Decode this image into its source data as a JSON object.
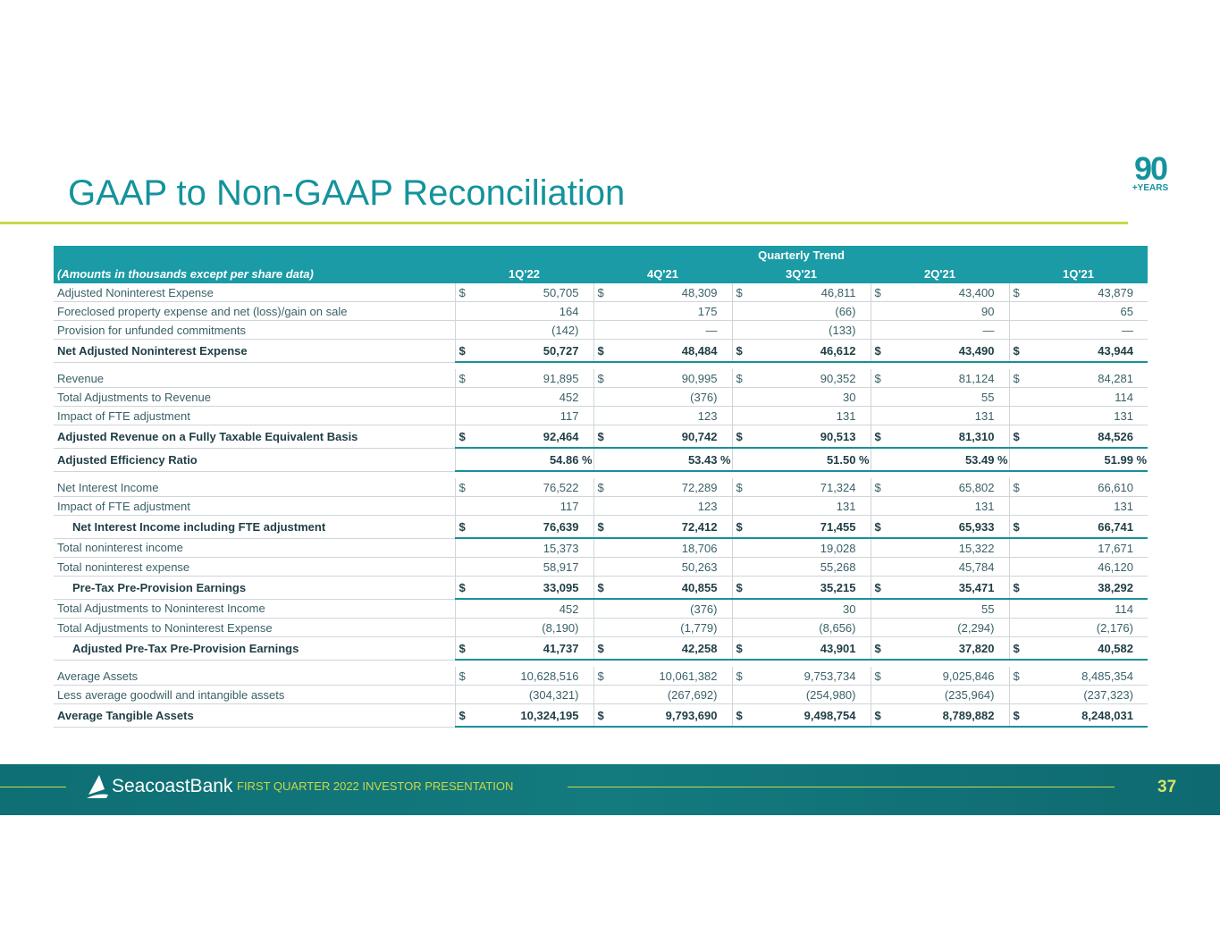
{
  "header": {
    "title": "GAAP to Non-GAAP Reconciliation",
    "logo": {
      "number": "90",
      "caption": "+YEARS"
    }
  },
  "table": {
    "group_header": "Quarterly Trend",
    "label_header": "(Amounts in thousands except per share data)",
    "columns": [
      "1Q'22",
      "4Q'21",
      "3Q'21",
      "2Q'21",
      "1Q'21"
    ],
    "currency_symbol": "$",
    "percent_symbol": "%",
    "sections": [
      {
        "rows": [
          {
            "label": "Adjusted Noninterest Expense",
            "dollar": true,
            "cells": [
              "50,705",
              "48,309",
              "46,811",
              "43,400",
              "43,879"
            ]
          },
          {
            "label": "Foreclosed property expense and net (loss)/gain on sale",
            "cells": [
              "164",
              "175",
              "(66)",
              "90",
              "65"
            ]
          },
          {
            "label": "Provision for unfunded commitments",
            "cells": [
              "(142)",
              "—",
              "(133)",
              "—",
              "—"
            ]
          },
          {
            "label": "Net Adjusted Noninterest Expense",
            "bold": true,
            "dollar": true,
            "cells": [
              "50,727",
              "48,484",
              "46,612",
              "43,490",
              "43,944"
            ]
          }
        ]
      },
      {
        "rows": [
          {
            "label": "Revenue",
            "dollar": true,
            "cells": [
              "91,895",
              "90,995",
              "90,352",
              "81,124",
              "84,281"
            ]
          },
          {
            "label": "Total Adjustments to Revenue",
            "cells": [
              "452",
              "(376)",
              "30",
              "55",
              "114"
            ]
          },
          {
            "label": "Impact of FTE adjustment",
            "cells": [
              "117",
              "123",
              "131",
              "131",
              "131"
            ]
          },
          {
            "label": "Adjusted Revenue on a Fully Taxable Equivalent Basis",
            "bold": true,
            "dollar": true,
            "cells": [
              "92,464",
              "90,742",
              "90,513",
              "81,310",
              "84,526"
            ]
          },
          {
            "label": "Adjusted Efficiency Ratio",
            "bold": true,
            "percent": true,
            "cells": [
              "54.86",
              "53.43",
              "51.50",
              "53.49",
              "51.99"
            ]
          }
        ]
      },
      {
        "rows": [
          {
            "label": "Net Interest Income",
            "dollar": true,
            "cells": [
              "76,522",
              "72,289",
              "71,324",
              "65,802",
              "66,610"
            ]
          },
          {
            "label": "Impact of FTE adjustment",
            "cells": [
              "117",
              "123",
              "131",
              "131",
              "131"
            ]
          },
          {
            "label": "Net Interest Income including FTE adjustment",
            "bold": true,
            "indent": true,
            "dollar": true,
            "cells": [
              "76,639",
              "72,412",
              "71,455",
              "65,933",
              "66,741"
            ]
          },
          {
            "label": "Total noninterest income",
            "cells": [
              "15,373",
              "18,706",
              "19,028",
              "15,322",
              "17,671"
            ]
          },
          {
            "label": "Total noninterest expense",
            "cells": [
              "58,917",
              "50,263",
              "55,268",
              "45,784",
              "46,120"
            ]
          },
          {
            "label": "Pre-Tax Pre-Provision Earnings",
            "bold": true,
            "indent": true,
            "dollar": true,
            "cells": [
              "33,095",
              "40,855",
              "35,215",
              "35,471",
              "38,292"
            ]
          },
          {
            "label": "Total Adjustments to Noninterest Income",
            "cells": [
              "452",
              "(376)",
              "30",
              "55",
              "114"
            ]
          },
          {
            "label": "Total Adjustments to Noninterest Expense",
            "cells": [
              "(8,190)",
              "(1,779)",
              "(8,656)",
              "(2,294)",
              "(2,176)"
            ]
          },
          {
            "label": "Adjusted Pre-Tax Pre-Provision Earnings",
            "bold": true,
            "indent": true,
            "dollar": true,
            "cells": [
              "41,737",
              "42,258",
              "43,901",
              "37,820",
              "40,582"
            ]
          }
        ]
      },
      {
        "rows": [
          {
            "label": "Average Assets",
            "dollar": true,
            "cells": [
              "10,628,516",
              "10,061,382",
              "9,753,734",
              "9,025,846",
              "8,485,354"
            ]
          },
          {
            "label": "Less average goodwill and intangible assets",
            "cells": [
              "(304,321)",
              "(267,692)",
              "(254,980)",
              "(235,964)",
              "(237,323)"
            ]
          },
          {
            "label": "Average Tangible Assets",
            "bold": true,
            "dollar": true,
            "cells": [
              "10,324,195",
              "9,793,690",
              "9,498,754",
              "8,789,882",
              "8,248,031"
            ]
          }
        ]
      }
    ]
  },
  "footer": {
    "brand": "SeacoastBank",
    "subtitle": "FIRST QUARTER 2022 INVESTOR PRESENTATION",
    "page": "37"
  }
}
